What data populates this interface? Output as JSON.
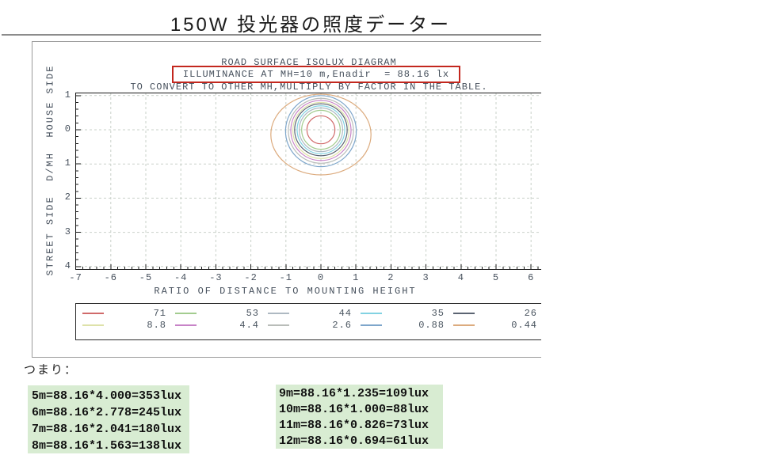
{
  "page": {
    "title": "150W 投光器の照度データー"
  },
  "chart_data": {
    "type": "contour",
    "title": "ROAD SURFACE ISOLUX DIAGRAM",
    "subtitle": "ILLUMINANCE AT MH=10 m,Enadir  = 88.16 lx",
    "conversion_note": "TO CONVERT TO OTHER MH,MULTIPLY BY FACTOR IN THE TABLE.",
    "xlabel": "RATIO OF DISTANCE TO MOUNTING HEIGHT",
    "ylabel": "STREET SIDE  D/MH  HOUSE SIDE",
    "xlim": [
      -7,
      6.3
    ],
    "ylim": [
      -1.1,
      4.1
    ],
    "grid": "dashed, 1-unit spacing, minor ticks every 0.2",
    "legend_position": "bottom box, 5 columns x 2 rows",
    "x_ticks": [
      {
        "v": -7,
        "label": "-7"
      },
      {
        "v": -6,
        "label": "-6"
      },
      {
        "v": -5,
        "label": "-5"
      },
      {
        "v": -4,
        "label": "-4"
      },
      {
        "v": -3,
        "label": "-3"
      },
      {
        "v": -2,
        "label": "-2"
      },
      {
        "v": -1,
        "label": "-1"
      },
      {
        "v": 0,
        "label": "0"
      },
      {
        "v": 1,
        "label": "1"
      },
      {
        "v": 2,
        "label": "2"
      },
      {
        "v": 3,
        "label": "3"
      },
      {
        "v": 4,
        "label": "4"
      },
      {
        "v": 5,
        "label": "5"
      },
      {
        "v": 6,
        "label": "6"
      }
    ],
    "y_ticks": [
      {
        "v": -1,
        "label": "1"
      },
      {
        "v": 0,
        "label": "0"
      },
      {
        "v": 1,
        "label": "1"
      },
      {
        "v": 2,
        "label": "2"
      },
      {
        "v": 3,
        "label": "3"
      },
      {
        "v": 4,
        "label": "4"
      }
    ],
    "center": [
      0,
      0
    ],
    "contours": [
      {
        "lux": "71",
        "color": "#d06a6a",
        "rx": 0.4,
        "ry": 0.41,
        "dy": 0
      },
      {
        "lux": "53",
        "color": "#a3cc8f",
        "rx": 0.55,
        "ry": 0.57,
        "dy": 0
      },
      {
        "lux": "44",
        "color": "#aeb9c2",
        "rx": 0.62,
        "ry": 0.64,
        "dy": 0
      },
      {
        "lux": "35",
        "color": "#82d2e2",
        "rx": 0.68,
        "ry": 0.7,
        "dy": 0
      },
      {
        "lux": "26",
        "color": "#5b6472",
        "rx": 0.75,
        "ry": 0.76,
        "dy": 0
      },
      {
        "lux": "8.8",
        "color": "#dee2a9",
        "rx": 0.8,
        "ry": 0.82,
        "dy": 0.02
      },
      {
        "lux": "4.4",
        "color": "#c783c7",
        "rx": 0.86,
        "ry": 0.88,
        "dy": 0.02
      },
      {
        "lux": "2.6",
        "color": "#b9bdb9",
        "rx": 0.93,
        "ry": 0.95,
        "dy": 0.03
      },
      {
        "lux": "0.88",
        "color": "#7ea6cb",
        "rx": 1.01,
        "ry": 1.04,
        "dy": 0.04
      },
      {
        "lux": "0.44",
        "color": "#dcab7e",
        "rx": 1.43,
        "ry": 1.18,
        "dy": 0.14
      }
    ]
  },
  "annotation": {
    "highlight_color": "#c3271e"
  },
  "notes": {
    "intro": "つまり：",
    "left_box": [
      "5m=88.16*4.000=353lux",
      "6m=88.16*2.778=245lux",
      "7m=88.16*2.041=180lux",
      "8m=88.16*1.563=138lux"
    ],
    "right_box": [
      "9m=88.16*1.235=109lux",
      "10m=88.16*1.000=88lux",
      "11m=88.16*0.826=73lux",
      "12m=88.16*0.694=61lux"
    ]
  },
  "colors": {
    "calc_box_bg": "#d8ecd2",
    "grid": "#c9d1c9",
    "axis": "#1a1a1a",
    "chart_text": "#46505c",
    "title_rule": "#8c8c8c"
  }
}
